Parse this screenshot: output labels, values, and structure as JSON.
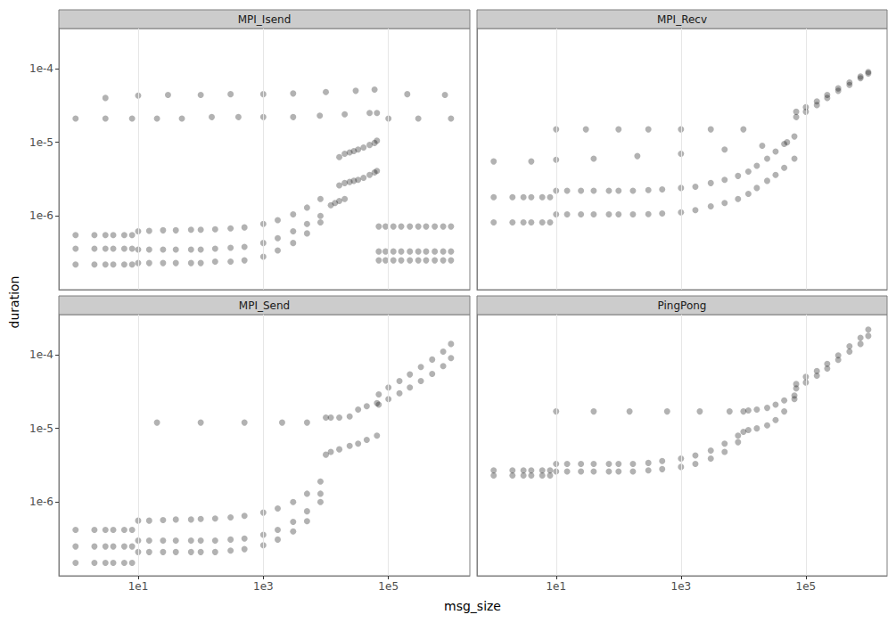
{
  "chart_data": {
    "type": "scatter",
    "xlabel": "msg_size",
    "ylabel": "duration",
    "log": true,
    "grid": true,
    "tick_labels": true,
    "marker": "circle",
    "color": "#000000",
    "xlim": [
      0.54,
      2000000
    ],
    "ylim": [
      1e-07,
      0.00035
    ],
    "xticks": [
      {
        "value": 10,
        "label": "1e1"
      },
      {
        "value": 1000,
        "label": "1e3"
      },
      {
        "value": 100000,
        "label": "1e5"
      }
    ],
    "yticks": [
      {
        "value": 1e-06,
        "label": "1e-6"
      },
      {
        "value": 1e-05,
        "label": "1e-5"
      },
      {
        "value": 0.0001,
        "label": "1e-4"
      }
    ],
    "panels": [
      {
        "title": "MPI_Isend",
        "x": [
          1,
          2,
          3,
          4,
          6,
          8,
          10,
          15,
          25,
          40,
          70,
          100,
          170,
          300,
          500,
          1000,
          1700,
          3000,
          5000,
          8192,
          1,
          2,
          3,
          4,
          6,
          8,
          10,
          15,
          25,
          40,
          70,
          100,
          170,
          300,
          500,
          1000,
          1700,
          3000,
          5000,
          8192,
          1,
          2,
          3,
          4,
          6,
          8,
          10,
          15,
          25,
          40,
          70,
          100,
          170,
          300,
          500,
          1000,
          1700,
          3000,
          5000,
          8192,
          12000,
          14000,
          16384,
          20000,
          16384,
          20000,
          24000,
          28000,
          32768,
          40000,
          50000,
          60000,
          65536,
          16384,
          20000,
          24000,
          28000,
          32768,
          40000,
          50000,
          60000,
          65536,
          70000,
          90000,
          120000,
          160000,
          220000,
          300000,
          400000,
          550000,
          750000,
          1000000,
          70000,
          90000,
          120000,
          160000,
          220000,
          300000,
          400000,
          550000,
          750000,
          1000000,
          70000,
          90000,
          120000,
          160000,
          220000,
          300000,
          400000,
          550000,
          750000,
          1000000,
          1,
          3,
          8,
          20,
          50,
          150,
          400,
          1000,
          3000,
          8000,
          20000,
          50000,
          65536,
          100000,
          300000,
          1000000,
          3,
          10,
          30,
          100,
          300,
          1000,
          3000,
          10000,
          30000,
          60000,
          200000,
          800000
        ],
        "values": [
          2.2e-07,
          2.2e-07,
          2.2e-07,
          2.2e-07,
          2.2e-07,
          2.2e-07,
          2.3e-07,
          2.3e-07,
          2.3e-07,
          2.3e-07,
          2.3e-07,
          2.3e-07,
          2.4e-07,
          2.4e-07,
          2.5e-07,
          2.8e-07,
          3.4e-07,
          4.3e-07,
          5.8e-07,
          8.2e-07,
          3.6e-07,
          3.6e-07,
          3.6e-07,
          3.6e-07,
          3.6e-07,
          3.6e-07,
          3.5e-07,
          3.5e-07,
          3.5e-07,
          3.5e-07,
          3.5e-07,
          3.5e-07,
          3.6e-07,
          3.7e-07,
          3.8e-07,
          4.3e-07,
          5e-07,
          6.2e-07,
          7.8e-07,
          1e-06,
          5.5e-07,
          5.5e-07,
          5.5e-07,
          5.5e-07,
          5.5e-07,
          5.5e-07,
          6.2e-07,
          6.3e-07,
          6.4e-07,
          6.4e-07,
          6.5e-07,
          6.5e-07,
          6.6e-07,
          6.8e-07,
          7e-07,
          7.8e-07,
          8.8e-07,
          1.05e-06,
          1.3e-06,
          1.7e-06,
          1.4e-06,
          1.5e-06,
          1.6e-06,
          1.7e-06,
          2.6e-06,
          2.8e-06,
          2.9e-06,
          3e-06,
          3.1e-06,
          3.3e-06,
          3.6e-06,
          3.9e-06,
          4.1e-06,
          6.3e-06,
          7e-06,
          7.3e-06,
          7.6e-06,
          8e-06,
          8.5e-06,
          9.2e-06,
          9.8e-06,
          1.05e-05,
          2.5e-07,
          2.5e-07,
          2.5e-07,
          2.5e-07,
          2.5e-07,
          2.5e-07,
          2.5e-07,
          2.5e-07,
          2.5e-07,
          2.5e-07,
          3.3e-07,
          3.3e-07,
          3.3e-07,
          3.3e-07,
          3.3e-07,
          3.3e-07,
          3.3e-07,
          3.3e-07,
          3.3e-07,
          3.3e-07,
          7.2e-07,
          7.2e-07,
          7.2e-07,
          7.2e-07,
          7.2e-07,
          7.2e-07,
          7.2e-07,
          7.2e-07,
          7.2e-07,
          7.2e-07,
          2.1e-05,
          2.1e-05,
          2.1e-05,
          2.1e-05,
          2.1e-05,
          2.2e-05,
          2.2e-05,
          2.2e-05,
          2.2e-05,
          2.3e-05,
          2.4e-05,
          2.5e-05,
          2.5e-05,
          2.1e-05,
          2.1e-05,
          2.1e-05,
          4e-05,
          4.3e-05,
          4.4e-05,
          4.4e-05,
          4.5e-05,
          4.5e-05,
          4.6e-05,
          4.8e-05,
          5e-05,
          5.2e-05,
          4.5e-05,
          4.4e-05
        ]
      },
      {
        "title": "MPI_Recv",
        "x": [
          1,
          2,
          3,
          4,
          6,
          8,
          10,
          15,
          25,
          40,
          70,
          100,
          170,
          300,
          500,
          1000,
          1700,
          3000,
          5000,
          8192,
          1,
          2,
          3,
          4,
          6,
          8,
          10,
          15,
          25,
          40,
          70,
          100,
          170,
          300,
          500,
          1000,
          1700,
          3000,
          5000,
          8192,
          12000,
          16384,
          24000,
          32768,
          45000,
          65536,
          12000,
          16384,
          24000,
          32768,
          45000,
          65536,
          70000,
          100000,
          150000,
          220000,
          330000,
          500000,
          750000,
          1000000,
          70000,
          100000,
          150000,
          220000,
          330000,
          500000,
          750000,
          1000000,
          1,
          4,
          10,
          40,
          200,
          1000,
          5000,
          20000,
          50000,
          10,
          30,
          100,
          300,
          1000,
          3000,
          10000
        ],
        "values": [
          8.2e-07,
          8.2e-07,
          8.2e-07,
          8.2e-07,
          8.2e-07,
          8.2e-07,
          1.05e-06,
          1.05e-06,
          1.05e-06,
          1.05e-06,
          1.05e-06,
          1.05e-06,
          1.05e-06,
          1.06e-06,
          1.08e-06,
          1.12e-06,
          1.2e-06,
          1.35e-06,
          1.5e-06,
          1.7e-06,
          1.8e-06,
          1.8e-06,
          1.8e-06,
          1.8e-06,
          1.8e-06,
          1.8e-06,
          2.2e-06,
          2.2e-06,
          2.2e-06,
          2.2e-06,
          2.2e-06,
          2.2e-06,
          2.2e-06,
          2.25e-06,
          2.3e-06,
          2.4e-06,
          2.5e-06,
          2.8e-06,
          3.1e-06,
          3.5e-06,
          2e-06,
          2.4e-06,
          3e-06,
          3.6e-06,
          4.5e-06,
          6e-06,
          4e-06,
          4.8e-06,
          6e-06,
          7.5e-06,
          9.5e-06,
          1.2e-05,
          2.6e-05,
          3e-05,
          3.6e-05,
          4.4e-05,
          5.4e-05,
          6.5e-05,
          7.8e-05,
          9e-05,
          2.2e-05,
          2.6e-05,
          3.2e-05,
          4e-05,
          5e-05,
          6e-05,
          7.4e-05,
          8.6e-05,
          5.5e-06,
          5.5e-06,
          5.8e-06,
          6e-06,
          6.5e-06,
          7e-06,
          8e-06,
          9e-06,
          1e-05,
          1.5e-05,
          1.5e-05,
          1.5e-05,
          1.5e-05,
          1.5e-05,
          1.5e-05,
          1.5e-05
        ]
      },
      {
        "title": "MPI_Send",
        "x": [
          1,
          2,
          3,
          4,
          6,
          8,
          10,
          15,
          25,
          40,
          70,
          100,
          170,
          300,
          500,
          1000,
          1700,
          3000,
          5000,
          8192,
          1,
          2,
          3,
          4,
          6,
          8,
          10,
          15,
          25,
          40,
          70,
          100,
          170,
          300,
          500,
          1000,
          1700,
          3000,
          5000,
          8192,
          1,
          2,
          3,
          4,
          6,
          8,
          10,
          15,
          25,
          40,
          70,
          100,
          170,
          300,
          500,
          1000,
          1700,
          3000,
          5000,
          8192,
          10000,
          12000,
          16384,
          24000,
          32768,
          45000,
          65536,
          10000,
          12000,
          16384,
          24000,
          32768,
          45000,
          65536,
          70000,
          100000,
          150000,
          220000,
          330000,
          500000,
          750000,
          1000000,
          70000,
          100000,
          150000,
          220000,
          330000,
          500000,
          750000,
          1000000,
          20,
          100,
          500,
          2000,
          5000
        ],
        "values": [
          1.5e-07,
          1.5e-07,
          1.5e-07,
          1.5e-07,
          1.5e-07,
          1.5e-07,
          2.1e-07,
          2.1e-07,
          2.1e-07,
          2.1e-07,
          2.1e-07,
          2.1e-07,
          2.1e-07,
          2.2e-07,
          2.3e-07,
          2.6e-07,
          3.1e-07,
          4e-07,
          5.5e-07,
          1e-06,
          2.5e-07,
          2.5e-07,
          2.5e-07,
          2.5e-07,
          2.5e-07,
          2.5e-07,
          3e-07,
          3e-07,
          3e-07,
          3e-07,
          3e-07,
          3e-07,
          3e-07,
          3.1e-07,
          3.2e-07,
          3.6e-07,
          4.2e-07,
          5.4e-07,
          7.5e-07,
          1.3e-06,
          4.2e-07,
          4.2e-07,
          4.2e-07,
          4.2e-07,
          4.2e-07,
          4.2e-07,
          5.6e-07,
          5.6e-07,
          5.7e-07,
          5.8e-07,
          5.8e-07,
          5.9e-07,
          6e-07,
          6.2e-07,
          6.5e-07,
          7.2e-07,
          8.2e-07,
          1e-06,
          1.3e-06,
          1.9e-06,
          4.4e-06,
          4.8e-06,
          5.2e-06,
          5.8e-06,
          6.2e-06,
          7e-06,
          8e-06,
          1.4e-05,
          1.4e-05,
          1.4e-05,
          1.45e-05,
          1.8e-05,
          2e-05,
          2.2e-05,
          2.1e-05,
          2.5e-05,
          3e-05,
          3.6e-05,
          4.4e-05,
          5.5e-05,
          7e-05,
          9e-05,
          2.9e-05,
          3.6e-05,
          4.4e-05,
          5.4e-05,
          6.8e-05,
          8.6e-05,
          0.00011,
          0.00014,
          1.2e-05,
          1.2e-05,
          1.2e-05,
          1.2e-05,
          1.2e-05
        ]
      },
      {
        "title": "PingPong",
        "x": [
          1,
          2,
          3,
          4,
          6,
          8,
          10,
          15,
          25,
          40,
          70,
          100,
          170,
          300,
          500,
          1000,
          1700,
          3000,
          5000,
          8192,
          1,
          2,
          3,
          4,
          6,
          8,
          10,
          15,
          25,
          40,
          70,
          100,
          170,
          300,
          500,
          1000,
          1700,
          3000,
          5000,
          8192,
          10000,
          12000,
          16384,
          24000,
          32768,
          45000,
          65536,
          10000,
          12000,
          16384,
          24000,
          32768,
          45000,
          65536,
          70000,
          100000,
          150000,
          220000,
          330000,
          500000,
          750000,
          1000000,
          70000,
          100000,
          150000,
          220000,
          330000,
          500000,
          750000,
          1000000,
          10,
          40,
          150,
          600,
          2000,
          6000
        ],
        "values": [
          2.3e-06,
          2.3e-06,
          2.3e-06,
          2.3e-06,
          2.3e-06,
          2.3e-06,
          2.6e-06,
          2.6e-06,
          2.6e-06,
          2.6e-06,
          2.6e-06,
          2.6e-06,
          2.6e-06,
          2.7e-06,
          2.8e-06,
          3e-06,
          3.3e-06,
          3.9e-06,
          4.8e-06,
          6.5e-06,
          2.7e-06,
          2.7e-06,
          2.7e-06,
          2.7e-06,
          2.7e-06,
          2.7e-06,
          3.3e-06,
          3.3e-06,
          3.3e-06,
          3.3e-06,
          3.3e-06,
          3.3e-06,
          3.3e-06,
          3.4e-06,
          3.6e-06,
          3.9e-06,
          4.3e-06,
          5e-06,
          6.2e-06,
          8e-06,
          9e-06,
          9.5e-06,
          1e-05,
          1.1e-05,
          1.3e-05,
          1.7e-05,
          2.5e-05,
          1.7e-05,
          1.75e-05,
          1.8e-05,
          1.9e-05,
          2.1e-05,
          2.4e-05,
          2.8e-05,
          3.5e-05,
          4.2e-05,
          5.2e-05,
          6.5e-05,
          8.5e-05,
          0.00011,
          0.00014,
          0.00018,
          4e-05,
          5e-05,
          6e-05,
          7.5e-05,
          9.8e-05,
          0.00013,
          0.00017,
          0.00022,
          1.7e-05,
          1.7e-05,
          1.7e-05,
          1.7e-05,
          1.7e-05,
          1.7e-05
        ]
      }
    ]
  }
}
